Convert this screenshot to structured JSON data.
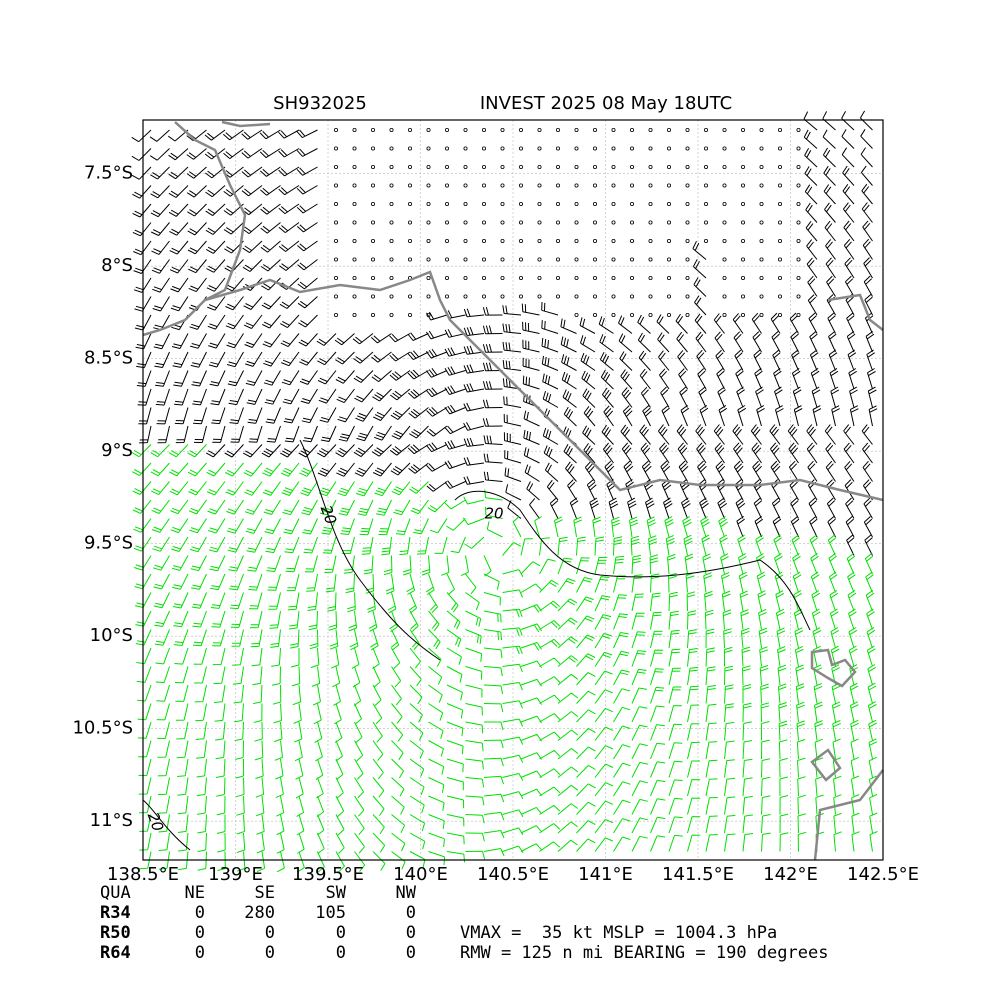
{
  "chart_data": {
    "type": "wind-barb-map",
    "title_left": "SH932025",
    "title_right": "INVEST 2025 08 May 18UTC",
    "xlim": [
      138.5,
      142.5
    ],
    "ylim": [
      -11.21,
      -7.21
    ],
    "xticks": [
      {
        "value": 138.5,
        "label": "138.5°E"
      },
      {
        "value": 139,
        "label": "139°E"
      },
      {
        "value": 139.5,
        "label": "139.5°E"
      },
      {
        "value": 140,
        "label": "140°E"
      },
      {
        "value": 140.5,
        "label": "140.5°E"
      },
      {
        "value": 141,
        "label": "141°E"
      },
      {
        "value": 141.5,
        "label": "141.5°E"
      },
      {
        "value": 142,
        "label": "142°E"
      },
      {
        "value": 142.5,
        "label": "142.5°E"
      }
    ],
    "yticks": [
      {
        "value": -7.5,
        "label": "7.5°S"
      },
      {
        "value": -8,
        "label": "8°S"
      },
      {
        "value": -8.5,
        "label": "8.5°S"
      },
      {
        "value": -9,
        "label": "9°S"
      },
      {
        "value": -9.5,
        "label": "9.5°S"
      },
      {
        "value": -10,
        "label": "10°S"
      },
      {
        "value": -10.5,
        "label": "10.5°S"
      },
      {
        "value": -11,
        "label": "11°S"
      }
    ],
    "grid": true,
    "contour_labels": [
      20,
      20,
      20
    ],
    "radii_table": {
      "header": [
        "QUA",
        "NE",
        "SE",
        "SW",
        "NW"
      ],
      "rows": [
        [
          "R34",
          0,
          280,
          105,
          0
        ],
        [
          "R50",
          0,
          0,
          0,
          0
        ],
        [
          "R64",
          0,
          0,
          0,
          0
        ]
      ]
    },
    "summary": [
      "VMAX =  35 kt MSLP = 1004.3 hPa",
      "RMW = 125 n mi BEARING = 190 degrees"
    ]
  }
}
